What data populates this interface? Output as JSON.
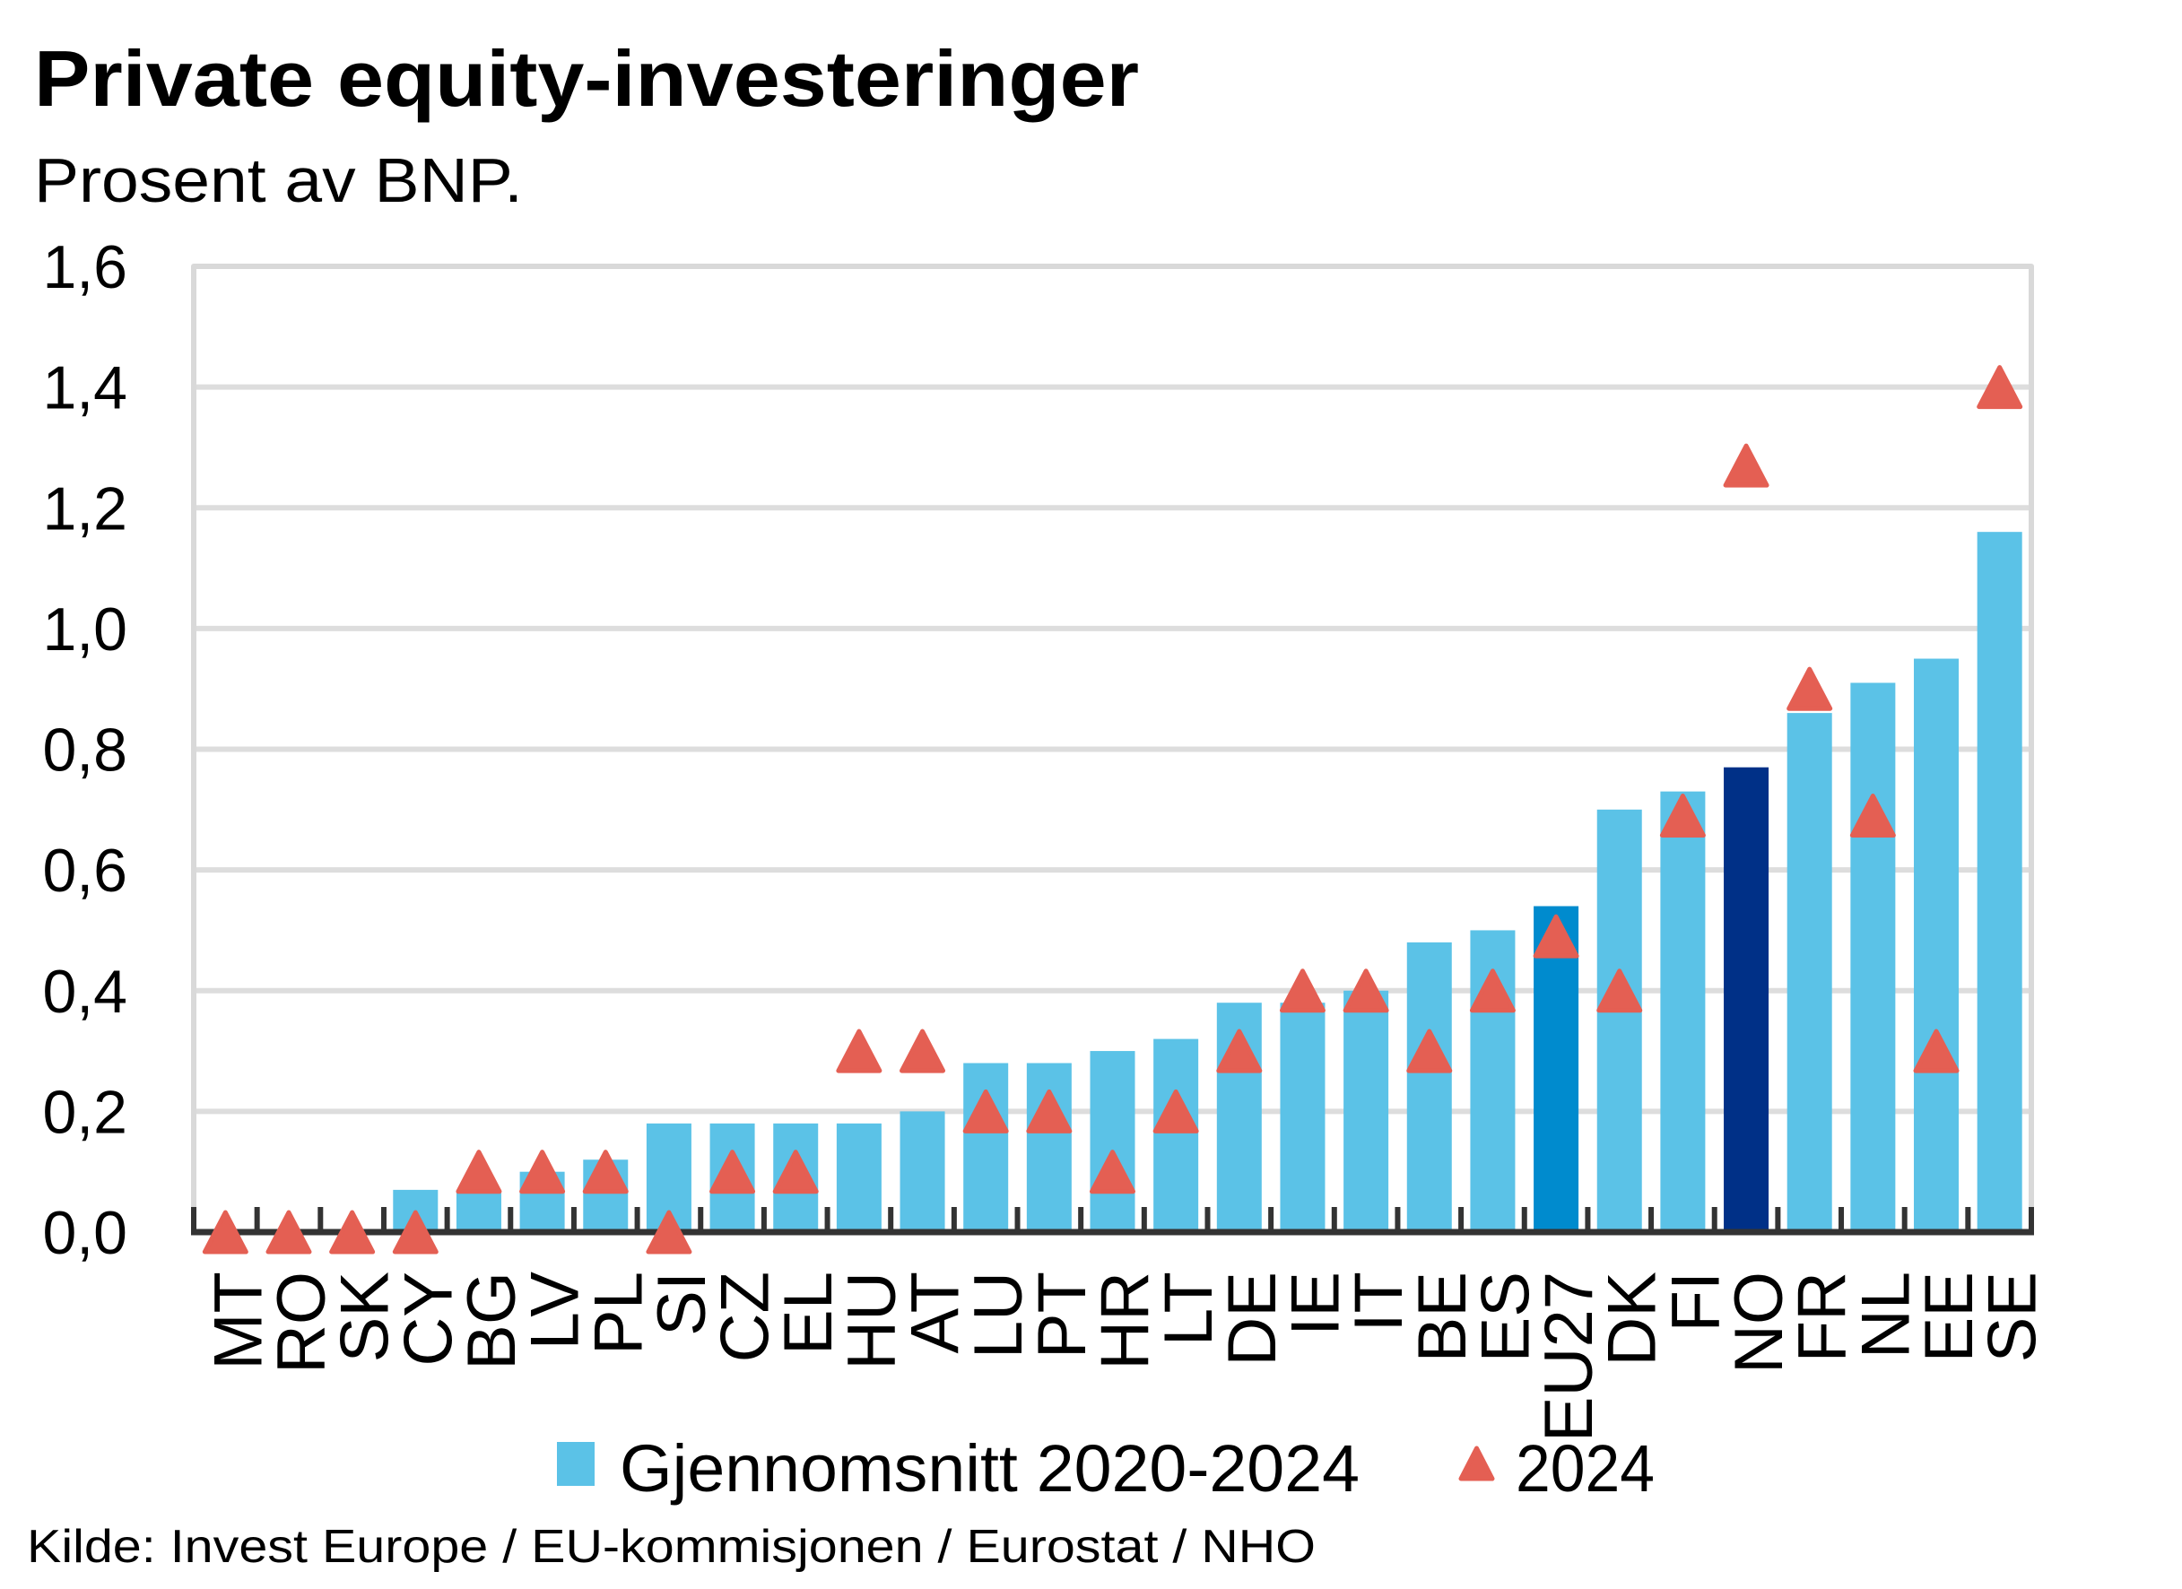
{
  "colors": {
    "bar": "#5BC2E7",
    "bar_eu27": "#008BCE",
    "bar_no": "#003087",
    "marker": "#E45F53",
    "grid": "#DDDDDD",
    "frame": "#D9D9D9",
    "axis": "#333333"
  },
  "chart_data": {
    "type": "bar",
    "title": "Private  equity-investeringer",
    "subtitle": "Prosent av BNP.",
    "xlabel": "",
    "ylabel": "",
    "ylim": [
      0,
      1.6
    ],
    "yticks": [
      0,
      0.2,
      0.4,
      0.6,
      0.8,
      1.0,
      1.2,
      1.4,
      1.6
    ],
    "ytick_labels": [
      "0,0",
      "0,2",
      "0,4",
      "0,6",
      "0,8",
      "1,0",
      "1,2",
      "1,4",
      "1,6"
    ],
    "grid": true,
    "legend_position": "bottom",
    "categories": [
      "MT",
      "RO",
      "SK",
      "CY",
      "BG",
      "LV",
      "PL",
      "SI",
      "CZ",
      "EL",
      "HU",
      "AT",
      "LU",
      "PT",
      "HR",
      "LT",
      "DE",
      "IE",
      "IT",
      "BE",
      "ES",
      "EU27",
      "DK",
      "FI",
      "NO",
      "FR",
      "NL",
      "EE",
      "SE"
    ],
    "highlight": {
      "EU27": "bar_eu27",
      "NO": "bar_no"
    },
    "series": [
      {
        "name": "Gjennomsnitt 2020-2024",
        "kind": "bar",
        "values": [
          0.0,
          0.0,
          0.0,
          0.07,
          0.07,
          0.1,
          0.12,
          0.18,
          0.18,
          0.18,
          0.18,
          0.2,
          0.28,
          0.28,
          0.3,
          0.32,
          0.38,
          0.38,
          0.4,
          0.48,
          0.5,
          0.54,
          0.7,
          0.73,
          0.77,
          0.86,
          0.91,
          0.95,
          1.16
        ]
      },
      {
        "name": "2024",
        "kind": "triangle-marker",
        "values": [
          0.0,
          0.0,
          0.0,
          0.0,
          0.1,
          0.1,
          0.1,
          0.0,
          0.1,
          0.1,
          0.3,
          0.3,
          0.2,
          0.2,
          0.1,
          0.2,
          0.3,
          0.4,
          0.4,
          0.3,
          0.4,
          0.49,
          0.4,
          0.69,
          1.27,
          0.9,
          0.69,
          0.3,
          1.4
        ]
      }
    ],
    "source": "Kilde: Invest Europe / EU-kommisjonen / Eurostat / NHO"
  }
}
